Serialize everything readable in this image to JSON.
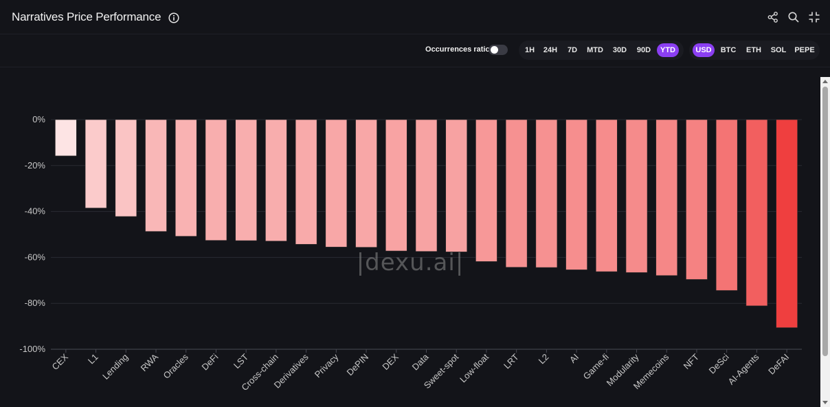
{
  "header": {
    "title": "Narratives Price Performance",
    "icons": [
      "info-icon",
      "share-icon",
      "search-icon",
      "collapse-icon"
    ]
  },
  "toolbar": {
    "occurrences_label": "Occurrences ratio",
    "occurrences_on": false,
    "timeframes": [
      "1H",
      "24H",
      "7D",
      "MTD",
      "30D",
      "90D",
      "YTD"
    ],
    "active_timeframe": "YTD",
    "currencies": [
      "USD",
      "BTC",
      "ETH",
      "SOL",
      "PEPE"
    ],
    "active_currency": "USD"
  },
  "watermark": "|dexu.ai|",
  "colors": {
    "accent": "#8b3ff2",
    "bar_light": "#fde3e3",
    "bar_dark": "#ef3e3e",
    "background": "#131419"
  },
  "chart_data": {
    "type": "bar",
    "title": "Narratives Price Performance",
    "xlabel": "",
    "ylabel": "",
    "ylim": [
      -100,
      0
    ],
    "yticks": [
      0,
      -20,
      -40,
      -60,
      -80,
      -100
    ],
    "ytick_labels": [
      "0%",
      "-20%",
      "-40%",
      "-60%",
      "-80%",
      "-100%"
    ],
    "grid": true,
    "categories": [
      "CEX",
      "L1",
      "Lending",
      "RWA",
      "Oracles",
      "DeFi",
      "LST",
      "Cross-chain",
      "Derivatives",
      "Privacy",
      "DePIN",
      "DEX",
      "Data",
      "Sweet-spot",
      "Low-float",
      "LRT",
      "L2",
      "AI",
      "Game-fi",
      "Modularity",
      "Memecoins",
      "NFT",
      "DeSci",
      "AI-Agents",
      "DeFAI"
    ],
    "values": [
      -15.8,
      -38.5,
      -42.2,
      -48.7,
      -50.8,
      -52.6,
      -52.7,
      -52.9,
      -54.3,
      -55.5,
      -55.6,
      -57.2,
      -57.4,
      -57.6,
      -61.8,
      -64.3,
      -64.4,
      -65.4,
      -66.2,
      -66.6,
      -67.9,
      -69.6,
      -74.4,
      -81.1,
      -90.6
    ]
  }
}
